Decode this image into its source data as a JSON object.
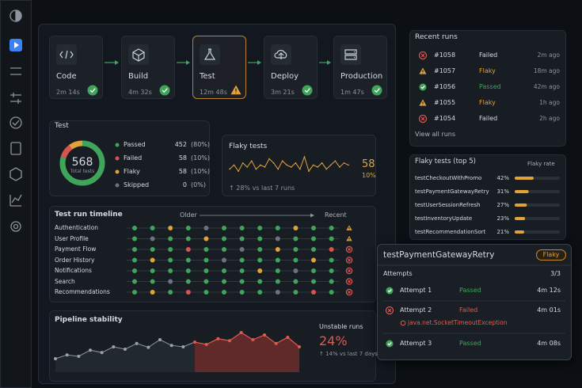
{
  "pipeline": [
    {
      "label": "Code",
      "duration": "2m 14s",
      "status": "passed"
    },
    {
      "label": "Build",
      "duration": "4m 32s",
      "status": "passed"
    },
    {
      "label": "Test",
      "duration": "12m 48s",
      "status": "flaky"
    },
    {
      "label": "Deploy",
      "duration": "3m 21s",
      "status": "passed"
    },
    {
      "label": "Production",
      "duration": "1m 47s",
      "status": "passed"
    }
  ],
  "test_summary": {
    "title": "Test",
    "total": 568,
    "total_label": "Total tests",
    "items": [
      {
        "name": "Passed",
        "count": 452,
        "share": "(80%)",
        "color": "#3fa55a"
      },
      {
        "name": "Failed",
        "count": 58,
        "share": "(10%)",
        "color": "#d9534f"
      },
      {
        "name": "Flaky",
        "count": 58,
        "share": "(10%)",
        "color": "#e0a33a"
      },
      {
        "name": "Skipped",
        "count": 0,
        "share": "(0%)",
        "color": "#6b7280"
      }
    ]
  },
  "flaky": {
    "title": "Flaky tests",
    "count": 58,
    "rate": "10%",
    "trend": "↑ 28% vs last 7 runs",
    "spark": [
      4,
      6,
      3,
      7,
      5,
      8,
      4,
      6,
      5,
      9,
      7,
      4,
      8,
      6,
      5,
      7,
      4,
      10,
      3,
      6,
      5,
      7,
      4,
      6,
      8,
      5,
      7,
      6
    ]
  },
  "timeline": {
    "title": "Test run timeline",
    "older": "Older",
    "recent": "Recent",
    "rows": [
      {
        "name": "Authentication",
        "end": "flaky",
        "runs": [
          "passed",
          "passed",
          "flaky",
          "passed",
          "skipped",
          "passed",
          "passed",
          "passed",
          "passed",
          "flaky",
          "passed",
          "passed"
        ]
      },
      {
        "name": "User Profile",
        "end": "flaky",
        "runs": [
          "passed",
          "skipped",
          "passed",
          "passed",
          "flaky",
          "passed",
          "passed",
          "passed",
          "skipped",
          "passed",
          "passed",
          "passed"
        ]
      },
      {
        "name": "Payment Flow",
        "end": "failed",
        "runs": [
          "passed",
          "passed",
          "passed",
          "failed",
          "passed",
          "passed",
          "skipped",
          "passed",
          "flaky",
          "passed",
          "passed",
          "failed"
        ]
      },
      {
        "name": "Order History",
        "end": "failed",
        "runs": [
          "passed",
          "flaky",
          "passed",
          "passed",
          "passed",
          "skipped",
          "passed",
          "passed",
          "passed",
          "passed",
          "flaky",
          "passed"
        ]
      },
      {
        "name": "Notifications",
        "end": "failed",
        "runs": [
          "passed",
          "passed",
          "passed",
          "passed",
          "passed",
          "passed",
          "passed",
          "flaky",
          "passed",
          "skipped",
          "passed",
          "passed"
        ]
      },
      {
        "name": "Search",
        "end": "failed",
        "runs": [
          "passed",
          "passed",
          "skipped",
          "passed",
          "passed",
          "passed",
          "passed",
          "passed",
          "passed",
          "passed",
          "passed",
          "passed"
        ]
      },
      {
        "name": "Recommendations",
        "end": "failed",
        "runs": [
          "passed",
          "flaky",
          "passed",
          "failed",
          "passed",
          "passed",
          "passed",
          "passed",
          "skipped",
          "passed",
          "failed",
          "passed"
        ]
      }
    ]
  },
  "stability": {
    "title": "Pipeline stability",
    "metric_label": "Unstable runs",
    "metric": "24%",
    "trend": "↑ 14% vs last 7 days",
    "values": [
      20,
      28,
      25,
      38,
      33,
      45,
      40,
      52,
      44,
      60,
      48,
      45,
      55,
      50,
      62,
      58,
      75,
      60,
      70,
      52,
      65,
      45
    ]
  },
  "recent_runs": {
    "title": "Recent runs",
    "link": "View all runs",
    "runs": [
      {
        "id": "#1058",
        "status": "Failed",
        "ago": "2m ago"
      },
      {
        "id": "#1057",
        "status": "Flaky",
        "ago": "18m ago"
      },
      {
        "id": "#1056",
        "status": "Passed",
        "ago": "42m ago"
      },
      {
        "id": "#1055",
        "status": "Flaky",
        "ago": "1h ago"
      },
      {
        "id": "#1054",
        "status": "Failed",
        "ago": "2h ago"
      }
    ]
  },
  "flaky_top": {
    "title": "Flaky tests (top 5)",
    "column": "Flaky rate",
    "rows": [
      {
        "name": "testCheckoutWithPromo",
        "rate": {
          "value": 42,
          "label": "42%"
        }
      },
      {
        "name": "testPaymentGatewayRetry",
        "rate": {
          "value": 31,
          "label": "31%"
        }
      },
      {
        "name": "testUserSessionRefresh",
        "rate": {
          "value": 27,
          "label": "27%"
        }
      },
      {
        "name": "testInventoryUpdate",
        "rate": {
          "value": 23,
          "label": "23%"
        }
      },
      {
        "name": "testRecommendationSort",
        "rate": {
          "value": 21,
          "label": "21%"
        }
      }
    ]
  },
  "detail": {
    "title": "testPaymentGatewayRetry",
    "badge": "Flaky",
    "attempts_label": "Attempts",
    "attempts": "3/3",
    "rows": [
      {
        "name": "Attempt 1",
        "status": "Passed",
        "duration": "4m 12s"
      },
      {
        "name": "Attempt 2",
        "status": "Failed",
        "duration": "4m 01s",
        "error": "java.net.SocketTimeoutException"
      },
      {
        "name": "Attempt 3",
        "status": "Passed",
        "duration": "4m 08s"
      }
    ]
  }
}
